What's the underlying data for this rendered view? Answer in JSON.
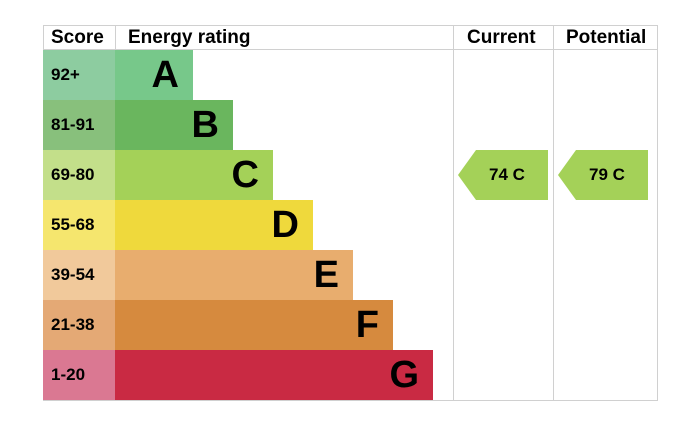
{
  "headers": {
    "score": "Score",
    "energy_rating": "Energy rating",
    "current": "Current",
    "potential": "Potential"
  },
  "chart_data": {
    "type": "bar",
    "bands": [
      {
        "letter": "A",
        "range": "92+",
        "score_color": "#8dcca0",
        "bar_color": "#77c88a"
      },
      {
        "letter": "B",
        "range": "81-91",
        "score_color": "#88c07c",
        "bar_color": "#6ab65e"
      },
      {
        "letter": "C",
        "range": "69-80",
        "score_color": "#c3df8a",
        "bar_color": "#a4d158"
      },
      {
        "letter": "D",
        "range": "55-68",
        "score_color": "#f5e66e",
        "bar_color": "#efd93c"
      },
      {
        "letter": "E",
        "range": "39-54",
        "score_color": "#f1c99b",
        "bar_color": "#e8ad6e"
      },
      {
        "letter": "F",
        "range": "21-38",
        "score_color": "#e4a975",
        "bar_color": "#d68a3e"
      },
      {
        "letter": "G",
        "range": "1-20",
        "score_color": "#da7892",
        "bar_color": "#c92a43"
      }
    ],
    "current": {
      "value": 74,
      "band": "C",
      "label": "74  C",
      "color": "#a4d158"
    },
    "potential": {
      "value": 79,
      "band": "C",
      "label": "79  C",
      "color": "#a4d158"
    }
  }
}
